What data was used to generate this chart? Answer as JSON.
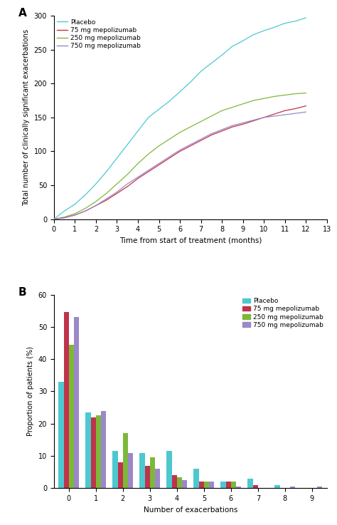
{
  "panel_A_label": "A",
  "panel_B_label": "B",
  "line_colors": {
    "placebo": "#4DC8D0",
    "mg75": "#C0334A",
    "mg250": "#7DB83A",
    "mg750": "#9B88C8"
  },
  "line_labels": [
    "Placebo",
    "75 mg mepolizumab",
    "250 mg mepolizumab",
    "750 mg mepolizumab"
  ],
  "line_A_xlabel": "Time from start of treatment (months)",
  "line_A_ylabel": "Total number of clinically significant exacerbations",
  "line_A_xlim": [
    0,
    13
  ],
  "line_A_ylim": [
    0,
    300
  ],
  "line_A_xticks": [
    0,
    1,
    2,
    3,
    4,
    5,
    6,
    7,
    8,
    9,
    10,
    11,
    12,
    13
  ],
  "line_A_yticks": [
    0,
    50,
    100,
    150,
    200,
    250,
    300
  ],
  "placebo_x": [
    0,
    0.5,
    1,
    1.5,
    2,
    2.5,
    3,
    3.5,
    4,
    4.5,
    5,
    5.5,
    6,
    6.5,
    7,
    7.5,
    8,
    8.5,
    9,
    9.5,
    10,
    10.5,
    11,
    11.5,
    12
  ],
  "placebo_y": [
    0,
    12,
    22,
    36,
    52,
    70,
    90,
    110,
    130,
    150,
    162,
    174,
    188,
    202,
    218,
    230,
    242,
    255,
    263,
    272,
    278,
    283,
    289,
    292,
    297
  ],
  "mg75_x": [
    0,
    0.5,
    1,
    1.5,
    2,
    2.5,
    3,
    3.5,
    4,
    4.5,
    5,
    5.5,
    6,
    6.5,
    7,
    7.5,
    8,
    8.5,
    9,
    9.5,
    10,
    10.5,
    11,
    11.5,
    12
  ],
  "mg75_y": [
    0,
    2,
    6,
    12,
    20,
    28,
    38,
    48,
    60,
    70,
    80,
    90,
    100,
    108,
    116,
    124,
    130,
    136,
    140,
    145,
    150,
    155,
    160,
    163,
    167
  ],
  "mg250_x": [
    0,
    0.5,
    1,
    1.5,
    2,
    2.5,
    3,
    3.5,
    4,
    4.5,
    5,
    5.5,
    6,
    6.5,
    7,
    7.5,
    8,
    8.5,
    9,
    9.5,
    10,
    10.5,
    11,
    11.5,
    12
  ],
  "mg250_y": [
    0,
    3,
    8,
    16,
    26,
    38,
    52,
    66,
    82,
    96,
    108,
    118,
    128,
    136,
    144,
    152,
    160,
    165,
    170,
    175,
    178,
    181,
    183,
    185,
    186
  ],
  "mg750_x": [
    0,
    0.5,
    1,
    1.5,
    2,
    2.5,
    3,
    3.5,
    4,
    4.5,
    5,
    5.5,
    6,
    6.5,
    7,
    7.5,
    8,
    8.5,
    9,
    9.5,
    10,
    10.5,
    11,
    11.5,
    12
  ],
  "mg750_y": [
    0,
    2,
    6,
    12,
    20,
    30,
    40,
    52,
    62,
    72,
    82,
    92,
    102,
    110,
    118,
    126,
    132,
    138,
    142,
    146,
    150,
    152,
    154,
    156,
    158
  ],
  "bar_colors": {
    "placebo": "#4DC8D0",
    "mg75": "#C0334A",
    "mg250": "#7DB83A",
    "mg750": "#9B88C8"
  },
  "bar_B_xlabel": "Number of exacerbations",
  "bar_B_ylabel": "Proportion of patients (%)",
  "bar_B_xlim": [
    -0.55,
    9.55
  ],
  "bar_B_ylim": [
    0,
    60
  ],
  "bar_B_yticks": [
    0,
    10,
    20,
    30,
    40,
    50,
    60
  ],
  "bar_B_xticks": [
    0,
    1,
    2,
    3,
    4,
    5,
    6,
    7,
    8,
    9
  ],
  "bar_data": {
    "placebo": [
      33,
      23.5,
      11.5,
      11,
      11.5,
      6,
      2,
      3,
      1,
      0
    ],
    "mg75": [
      54.5,
      22,
      8,
      7,
      4,
      2,
      2,
      1,
      0,
      0
    ],
    "mg250": [
      44.5,
      22.5,
      17,
      9.5,
      3.5,
      2,
      2,
      0,
      0,
      0
    ],
    "mg750": [
      53,
      24,
      11,
      6,
      2.5,
      2,
      0.5,
      0,
      0.5,
      0.5
    ]
  }
}
